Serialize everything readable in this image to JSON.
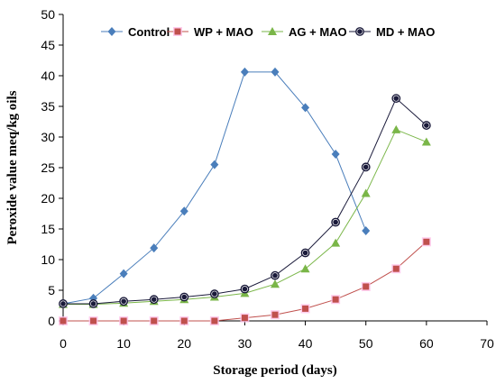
{
  "chart_data": {
    "type": "line",
    "xlabel": "Storage period (days)",
    "ylabel": "Peroxide value meq/kg oils",
    "xlim": [
      0,
      70
    ],
    "ylim": [
      0,
      50
    ],
    "x_ticks": [
      0,
      10,
      20,
      30,
      40,
      50,
      60,
      70
    ],
    "y_ticks": [
      0,
      5,
      10,
      15,
      20,
      25,
      30,
      35,
      40,
      45,
      50
    ],
    "grid": false,
    "legend_position": "top",
    "series": [
      {
        "name": "Control",
        "color": "#4a7ebb",
        "marker": "diamond",
        "x": [
          0,
          5,
          10,
          15,
          20,
          25,
          30,
          35,
          40,
          45,
          50
        ],
        "y": [
          2.8,
          3.7,
          7.7,
          11.9,
          17.9,
          25.5,
          40.6,
          40.6,
          34.8,
          27.2,
          14.7
        ]
      },
      {
        "name": "WP + MAO",
        "color": "#c0504d",
        "marker": "square",
        "x": [
          0,
          5,
          10,
          15,
          20,
          25,
          30,
          35,
          40,
          45,
          50,
          55,
          60
        ],
        "y": [
          0,
          0,
          0,
          0,
          0,
          0,
          0.5,
          1.0,
          2.0,
          3.5,
          5.6,
          8.5,
          12.9
        ]
      },
      {
        "name": "AG + MAO",
        "color": "#7ab648",
        "marker": "triangle",
        "x": [
          0,
          5,
          10,
          15,
          20,
          25,
          30,
          35,
          40,
          45,
          50,
          55,
          60
        ],
        "y": [
          2.7,
          2.7,
          2.9,
          3.2,
          3.5,
          3.9,
          4.5,
          6.0,
          8.5,
          12.7,
          20.8,
          31.2,
          29.2
        ]
      },
      {
        "name": "MD + MAO",
        "color": "#1a1a3a",
        "marker": "circle",
        "x": [
          0,
          5,
          10,
          15,
          20,
          25,
          30,
          35,
          40,
          45,
          50,
          55,
          60
        ],
        "y": [
          2.8,
          2.8,
          3.2,
          3.5,
          3.9,
          4.4,
          5.2,
          7.4,
          11.1,
          16.1,
          25.1,
          36.3,
          31.9
        ]
      }
    ]
  }
}
